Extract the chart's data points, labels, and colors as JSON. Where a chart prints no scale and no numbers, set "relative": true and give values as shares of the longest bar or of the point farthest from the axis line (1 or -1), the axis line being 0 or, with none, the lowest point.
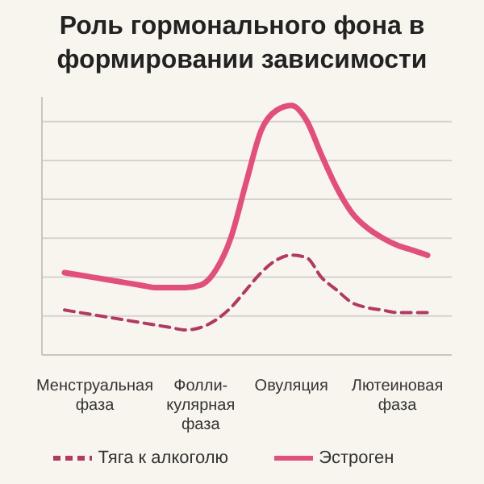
{
  "chart_data": {
    "type": "line",
    "title": "Роль гормонального фона в формировании зависимости",
    "categories": [
      null,
      null,
      "Менструальная фаза",
      null,
      null,
      null,
      null,
      null,
      null,
      "Фолли-кулярная фаза",
      null,
      null,
      null,
      null,
      null,
      "Овуляция",
      null,
      null,
      null,
      null,
      null,
      null,
      "Лютеиновая фаза",
      null,
      null
    ],
    "relative": true,
    "grid": "y",
    "legend": "bottom",
    "marker": "none",
    "series": [
      {
        "name": "Эстроген",
        "color": "#e0507a",
        "line_style": "solid",
        "values": [
          0.33,
          0.32,
          0.31,
          0.3,
          0.29,
          0.28,
          0.27,
          0.27,
          0.27,
          0.28,
          0.34,
          0.47,
          0.69,
          0.9,
          0.98,
          1.0,
          0.94,
          0.8,
          0.67,
          0.57,
          0.51,
          0.47,
          0.44,
          0.42,
          0.4
        ]
      },
      {
        "name": "Тяга к алкоголю",
        "color": "#b03a62",
        "line_style": "dashed",
        "values": [
          0.18,
          0.17,
          0.16,
          0.15,
          0.14,
          0.13,
          0.12,
          0.11,
          0.1,
          0.11,
          0.14,
          0.19,
          0.26,
          0.33,
          0.38,
          0.4,
          0.39,
          0.31,
          0.26,
          0.21,
          0.19,
          0.18,
          0.17,
          0.17,
          0.17
        ]
      }
    ]
  }
}
